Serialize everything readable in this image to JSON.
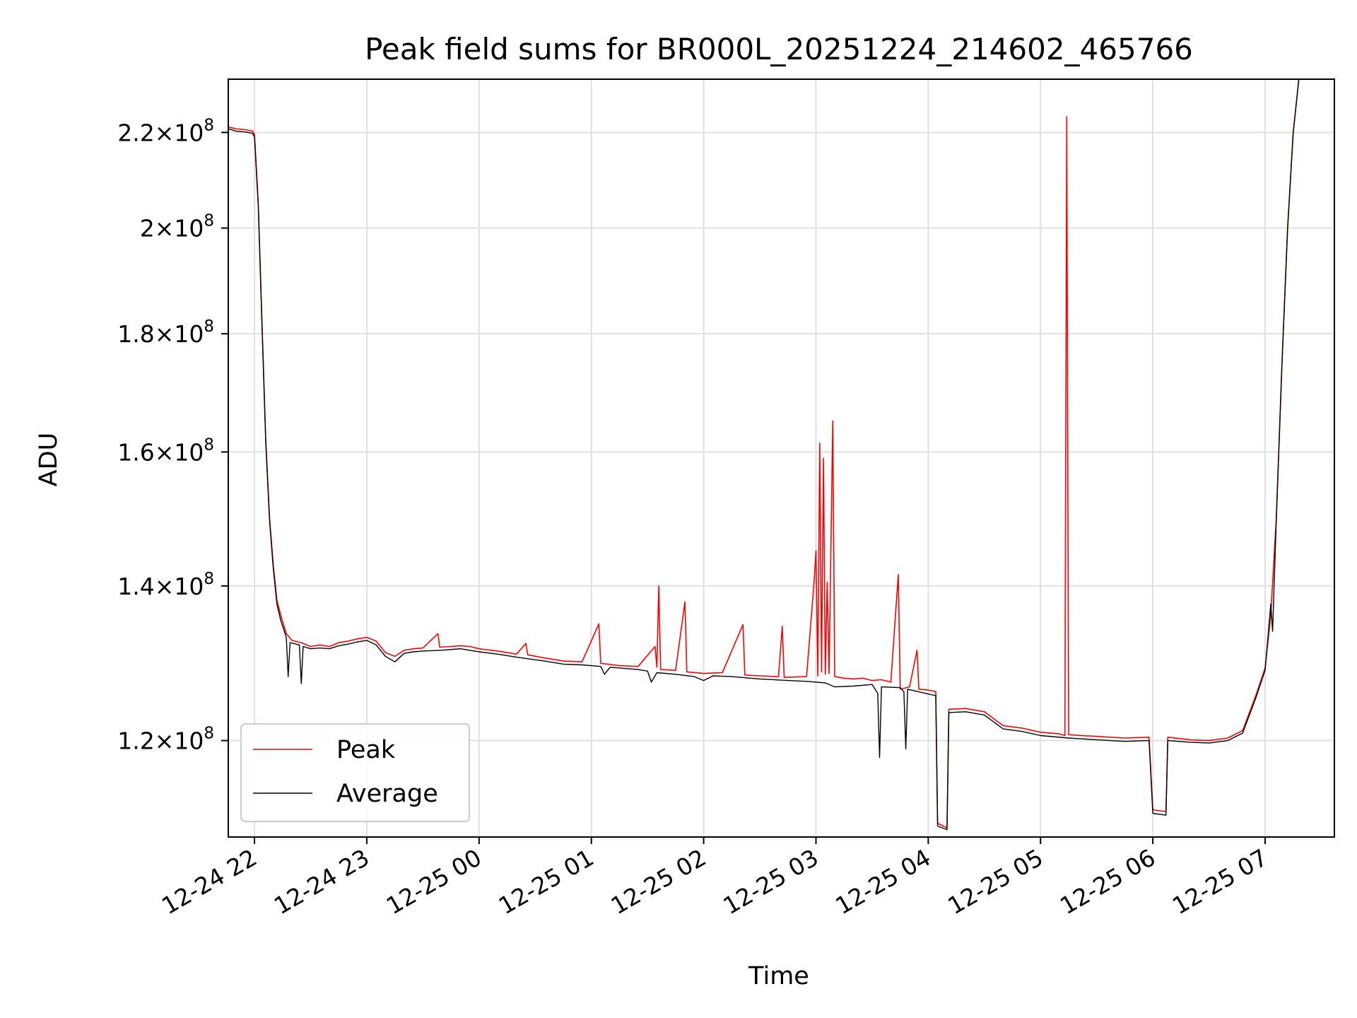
{
  "chart_data": {
    "type": "line",
    "title": "Peak field sums for BR000L_20251224_214602_465766",
    "xlabel": "Time",
    "ylabel": "ADU",
    "yscale": "log",
    "ylim": [
      109000000,
      232000000
    ],
    "xlim": [
      "2025-12-24 21:46",
      "2025-12-25 07:37"
    ],
    "grid": true,
    "legend_position": "lower-left",
    "x_ticks": [
      {
        "label": "12-24 22",
        "t": "2025-12-24 22:00"
      },
      {
        "label": "12-24 23",
        "t": "2025-12-24 23:00"
      },
      {
        "label": "12-25 00",
        "t": "2025-12-25 00:00"
      },
      {
        "label": "12-25 01",
        "t": "2025-12-25 01:00"
      },
      {
        "label": "12-25 02",
        "t": "2025-12-25 02:00"
      },
      {
        "label": "12-25 03",
        "t": "2025-12-25 03:00"
      },
      {
        "label": "12-25 04",
        "t": "2025-12-25 04:00"
      },
      {
        "label": "12-25 05",
        "t": "2025-12-25 05:00"
      },
      {
        "label": "12-25 06",
        "t": "2025-12-25 06:00"
      },
      {
        "label": "12-25 07",
        "t": "2025-12-25 07:00"
      }
    ],
    "y_ticks": [
      {
        "mantissa": "1.2",
        "exp": "8",
        "value": 120000000
      },
      {
        "mantissa": "1.4",
        "exp": "8",
        "value": 140000000
      },
      {
        "mantissa": "1.6",
        "exp": "8",
        "value": 160000000
      },
      {
        "mantissa": "1.8",
        "exp": "8",
        "value": 180000000
      },
      {
        "mantissa": "2",
        "exp": "8",
        "value": 200000000
      },
      {
        "mantissa": "2.2",
        "exp": "8",
        "value": 220000000
      }
    ],
    "series": [
      {
        "name": "Peak",
        "color": "#ff0000",
        "points": [
          [
            "2025-12-24 21:46",
            221200000
          ],
          [
            "2025-12-24 21:50",
            220800000
          ],
          [
            "2025-12-24 21:55",
            220600000
          ],
          [
            "2025-12-24 21:59",
            220300000
          ],
          [
            "2025-12-24 22:00",
            219500000
          ],
          [
            "2025-12-24 22:02",
            205000000
          ],
          [
            "2025-12-24 22:04",
            182000000
          ],
          [
            "2025-12-24 22:06",
            162000000
          ],
          [
            "2025-12-24 22:08",
            150000000
          ],
          [
            "2025-12-24 22:10",
            143000000
          ],
          [
            "2025-12-24 22:12",
            138000000
          ],
          [
            "2025-12-24 22:14",
            136000000
          ],
          [
            "2025-12-24 22:17",
            133500000
          ],
          [
            "2025-12-24 22:20",
            132600000
          ],
          [
            "2025-12-24 22:25",
            132300000
          ],
          [
            "2025-12-24 22:30",
            131800000
          ],
          [
            "2025-12-24 22:35",
            132000000
          ],
          [
            "2025-12-24 22:40",
            131800000
          ],
          [
            "2025-12-24 22:45",
            132300000
          ],
          [
            "2025-12-24 22:50",
            132500000
          ],
          [
            "2025-12-24 22:55",
            132800000
          ],
          [
            "2025-12-24 23:00",
            133000000
          ],
          [
            "2025-12-24 23:05",
            132500000
          ],
          [
            "2025-12-24 23:10",
            131000000
          ],
          [
            "2025-12-24 23:15",
            130500000
          ],
          [
            "2025-12-24 23:20",
            131300000
          ],
          [
            "2025-12-24 23:25",
            131500000
          ],
          [
            "2025-12-24 23:30",
            131600000
          ],
          [
            "2025-12-24 23:38",
            133500000
          ],
          [
            "2025-12-24 23:39",
            131700000
          ],
          [
            "2025-12-24 23:45",
            131800000
          ],
          [
            "2025-12-24 23:50",
            131900000
          ],
          [
            "2025-12-24 23:55",
            131800000
          ],
          [
            "2025-12-25 00:00",
            131500000
          ],
          [
            "2025-12-25 00:10",
            131200000
          ],
          [
            "2025-12-25 00:20",
            130800000
          ],
          [
            "2025-12-25 00:25",
            132200000
          ],
          [
            "2025-12-25 00:26",
            130700000
          ],
          [
            "2025-12-25 00:35",
            130300000
          ],
          [
            "2025-12-25 00:45",
            129900000
          ],
          [
            "2025-12-25 00:55",
            129800000
          ],
          [
            "2025-12-25 01:04",
            134800000
          ],
          [
            "2025-12-25 01:05",
            129600000
          ],
          [
            "2025-12-25 01:15",
            129300000
          ],
          [
            "2025-12-25 01:25",
            129200000
          ],
          [
            "2025-12-25 01:34",
            131800000
          ],
          [
            "2025-12-25 01:35",
            129100000
          ],
          [
            "2025-12-25 01:36",
            140000000
          ],
          [
            "2025-12-25 01:37",
            128800000
          ],
          [
            "2025-12-25 01:45",
            128700000
          ],
          [
            "2025-12-25 01:50",
            137800000
          ],
          [
            "2025-12-25 01:51",
            128500000
          ],
          [
            "2025-12-25 02:00",
            128300000
          ],
          [
            "2025-12-25 02:10",
            128400000
          ],
          [
            "2025-12-25 02:21",
            134700000
          ],
          [
            "2025-12-25 02:22",
            128100000
          ],
          [
            "2025-12-25 02:30",
            128000000
          ],
          [
            "2025-12-25 02:40",
            127900000
          ],
          [
            "2025-12-25 02:42",
            134500000
          ],
          [
            "2025-12-25 02:43",
            127800000
          ],
          [
            "2025-12-25 02:55",
            127900000
          ],
          [
            "2025-12-25 02:59",
            140500000
          ],
          [
            "2025-12-25 03:00",
            145000000
          ],
          [
            "2025-12-25 03:01",
            128000000
          ],
          [
            "2025-12-25 03:02",
            161400000
          ],
          [
            "2025-12-25 03:03",
            128500000
          ],
          [
            "2025-12-25 03:04",
            159000000
          ],
          [
            "2025-12-25 03:05",
            128200000
          ],
          [
            "2025-12-25 03:06",
            140500000
          ],
          [
            "2025-12-25 03:07",
            128300000
          ],
          [
            "2025-12-25 03:09",
            165000000
          ],
          [
            "2025-12-25 03:10",
            127900000
          ],
          [
            "2025-12-25 03:15",
            127700000
          ],
          [
            "2025-12-25 03:20",
            127600000
          ],
          [
            "2025-12-25 03:25",
            127700000
          ],
          [
            "2025-12-25 03:30",
            127400000
          ],
          [
            "2025-12-25 03:35",
            127500000
          ],
          [
            "2025-12-25 03:40",
            127200000
          ],
          [
            "2025-12-25 03:44",
            141600000
          ],
          [
            "2025-12-25 03:45",
            126300000
          ],
          [
            "2025-12-25 03:50",
            126600000
          ],
          [
            "2025-12-25 03:54",
            131300000
          ],
          [
            "2025-12-25 03:55",
            126300000
          ],
          [
            "2025-12-25 04:00",
            126200000
          ],
          [
            "2025-12-25 04:04",
            126000000
          ],
          [
            "2025-12-25 04:05",
            110500000
          ],
          [
            "2025-12-25 04:10",
            110000000
          ],
          [
            "2025-12-25 04:11",
            123800000
          ],
          [
            "2025-12-25 04:20",
            123900000
          ],
          [
            "2025-12-25 04:30",
            123500000
          ],
          [
            "2025-12-25 04:40",
            121800000
          ],
          [
            "2025-12-25 04:50",
            121500000
          ],
          [
            "2025-12-25 05:00",
            121000000
          ],
          [
            "2025-12-25 05:10",
            120800000
          ],
          [
            "2025-12-25 05:13",
            120600000
          ],
          [
            "2025-12-25 05:14",
            223500000
          ],
          [
            "2025-12-25 05:15",
            120700000
          ],
          [
            "2025-12-25 05:30",
            120500000
          ],
          [
            "2025-12-25 05:45",
            120300000
          ],
          [
            "2025-12-25 05:58",
            120400000
          ],
          [
            "2025-12-25 06:00",
            112000000
          ],
          [
            "2025-12-25 06:07",
            111800000
          ],
          [
            "2025-12-25 06:08",
            120400000
          ],
          [
            "2025-12-25 06:20",
            120100000
          ],
          [
            "2025-12-25 06:30",
            120000000
          ],
          [
            "2025-12-25 06:40",
            120300000
          ],
          [
            "2025-12-25 06:48",
            121200000
          ],
          [
            "2025-12-25 06:55",
            125500000
          ],
          [
            "2025-12-25 07:00",
            129000000
          ],
          [
            "2025-12-25 07:03",
            136000000
          ],
          [
            "2025-12-25 07:06",
            150000000
          ],
          [
            "2025-12-25 07:09",
            175000000
          ],
          [
            "2025-12-25 07:12",
            200000000
          ],
          [
            "2025-12-25 07:15",
            220000000
          ],
          [
            "2025-12-25 07:18",
            232000000
          ],
          [
            "2025-12-25 07:37",
            232000000
          ]
        ]
      },
      {
        "name": "Average",
        "color": "#000000",
        "points": [
          [
            "2025-12-24 21:46",
            220800000
          ],
          [
            "2025-12-24 21:50",
            220300000
          ],
          [
            "2025-12-24 21:55",
            220100000
          ],
          [
            "2025-12-24 21:59",
            219800000
          ],
          [
            "2025-12-24 22:00",
            219000000
          ],
          [
            "2025-12-24 22:02",
            204500000
          ],
          [
            "2025-12-24 22:04",
            181500000
          ],
          [
            "2025-12-24 22:06",
            161500000
          ],
          [
            "2025-12-24 22:08",
            149500000
          ],
          [
            "2025-12-24 22:10",
            142500000
          ],
          [
            "2025-12-24 22:12",
            137500000
          ],
          [
            "2025-12-24 22:14",
            135300000
          ],
          [
            "2025-12-24 22:17",
            133000000
          ],
          [
            "2025-12-24 22:18",
            127900000
          ],
          [
            "2025-12-24 22:19",
            132300000
          ],
          [
            "2025-12-24 22:24",
            132000000
          ],
          [
            "2025-12-24 22:25",
            127000000
          ],
          [
            "2025-12-24 22:26",
            131800000
          ],
          [
            "2025-12-24 22:30",
            131500000
          ],
          [
            "2025-12-24 22:35",
            131600000
          ],
          [
            "2025-12-24 22:40",
            131500000
          ],
          [
            "2025-12-24 22:45",
            131900000
          ],
          [
            "2025-12-24 22:50",
            132100000
          ],
          [
            "2025-12-24 22:55",
            132400000
          ],
          [
            "2025-12-24 23:00",
            132600000
          ],
          [
            "2025-12-24 23:05",
            132000000
          ],
          [
            "2025-12-24 23:10",
            130500000
          ],
          [
            "2025-12-24 23:15",
            129800000
          ],
          [
            "2025-12-24 23:20",
            130900000
          ],
          [
            "2025-12-24 23:25",
            131100000
          ],
          [
            "2025-12-24 23:30",
            131200000
          ],
          [
            "2025-12-24 23:40",
            131300000
          ],
          [
            "2025-12-24 23:50",
            131500000
          ],
          [
            "2025-12-25 00:00",
            131100000
          ],
          [
            "2025-12-25 00:10",
            130800000
          ],
          [
            "2025-12-25 00:20",
            130400000
          ],
          [
            "2025-12-25 00:35",
            129900000
          ],
          [
            "2025-12-25 00:45",
            129500000
          ],
          [
            "2025-12-25 00:55",
            129400000
          ],
          [
            "2025-12-25 01:05",
            129200000
          ],
          [
            "2025-12-25 01:07",
            128200000
          ],
          [
            "2025-12-25 01:10",
            129100000
          ],
          [
            "2025-12-25 01:25",
            128800000
          ],
          [
            "2025-12-25 01:30",
            128600000
          ],
          [
            "2025-12-25 01:32",
            127200000
          ],
          [
            "2025-12-25 01:35",
            128400000
          ],
          [
            "2025-12-25 01:45",
            128200000
          ],
          [
            "2025-12-25 01:55",
            127900000
          ],
          [
            "2025-12-25 02:00",
            127400000
          ],
          [
            "2025-12-25 02:05",
            128000000
          ],
          [
            "2025-12-25 02:15",
            127900000
          ],
          [
            "2025-12-25 02:30",
            127600000
          ],
          [
            "2025-12-25 02:45",
            127400000
          ],
          [
            "2025-12-25 02:55",
            127300000
          ],
          [
            "2025-12-25 03:05",
            127100000
          ],
          [
            "2025-12-25 03:10",
            126600000
          ],
          [
            "2025-12-25 03:20",
            126700000
          ],
          [
            "2025-12-25 03:30",
            126900000
          ],
          [
            "2025-12-25 03:33",
            125800000
          ],
          [
            "2025-12-25 03:34",
            118000000
          ],
          [
            "2025-12-25 03:35",
            126600000
          ],
          [
            "2025-12-25 03:45",
            126500000
          ],
          [
            "2025-12-25 03:47",
            126000000
          ],
          [
            "2025-12-25 03:48",
            119000000
          ],
          [
            "2025-12-25 03:49",
            126300000
          ],
          [
            "2025-12-25 04:00",
            125700000
          ],
          [
            "2025-12-25 04:04",
            125500000
          ],
          [
            "2025-12-25 04:05",
            110200000
          ],
          [
            "2025-12-25 04:10",
            109800000
          ],
          [
            "2025-12-25 04:11",
            123400000
          ],
          [
            "2025-12-25 04:20",
            123500000
          ],
          [
            "2025-12-25 04:30",
            123100000
          ],
          [
            "2025-12-25 04:40",
            121400000
          ],
          [
            "2025-12-25 04:50",
            121100000
          ],
          [
            "2025-12-25 05:00",
            120600000
          ],
          [
            "2025-12-25 05:15",
            120300000
          ],
          [
            "2025-12-25 05:30",
            120100000
          ],
          [
            "2025-12-25 05:45",
            119900000
          ],
          [
            "2025-12-25 05:58",
            120000000
          ],
          [
            "2025-12-25 06:00",
            111600000
          ],
          [
            "2025-12-25 06:07",
            111400000
          ],
          [
            "2025-12-25 06:08",
            120000000
          ],
          [
            "2025-12-25 06:20",
            119800000
          ],
          [
            "2025-12-25 06:30",
            119700000
          ],
          [
            "2025-12-25 06:40",
            120000000
          ],
          [
            "2025-12-25 06:48",
            120900000
          ],
          [
            "2025-12-25 06:55",
            125200000
          ],
          [
            "2025-12-25 07:00",
            128700000
          ],
          [
            "2025-12-25 07:03",
            137500000
          ],
          [
            "2025-12-25 07:04",
            133800000
          ],
          [
            "2025-12-25 07:06",
            149800000
          ],
          [
            "2025-12-25 07:09",
            174800000
          ],
          [
            "2025-12-25 07:12",
            199800000
          ],
          [
            "2025-12-25 07:15",
            219800000
          ],
          [
            "2025-12-25 07:18",
            232000000
          ],
          [
            "2025-12-25 07:37",
            232000000
          ]
        ]
      }
    ]
  }
}
